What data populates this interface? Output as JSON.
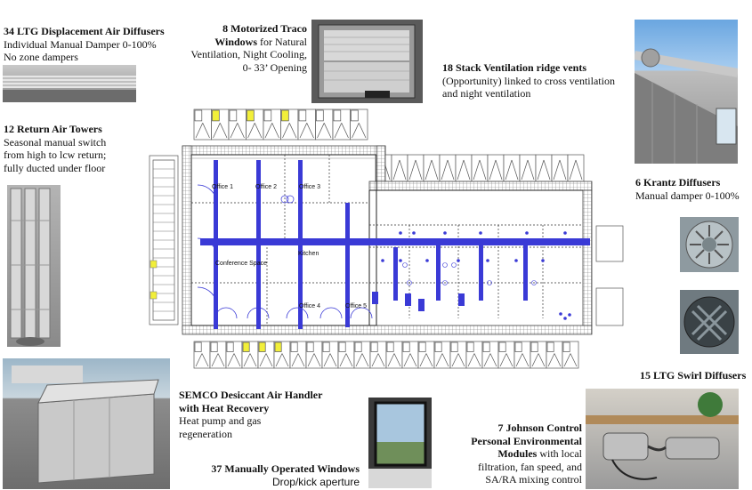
{
  "captions": {
    "ltg_displacement": {
      "title": "34 LTG Displacement Air Diffusers",
      "line1": "Individual Manual Damper 0-100%",
      "line2": "No zone dampers"
    },
    "traco": {
      "title1": "8 Motorized Traco",
      "title2": "Windows",
      "body1": " for Natural",
      "body2": "Ventilation, Night Cooling,",
      "body3": "0- 33’ Opening"
    },
    "stack": {
      "title": "18 Stack Ventilation ridge vents",
      "line1": "(Opportunity) linked to cross ventilation",
      "line2": "and night ventilation"
    },
    "return_towers": {
      "title": "12 Return Air Towers",
      "line1": "Seasonal manual switch",
      "line2": "from high to lcw return;",
      "line3": "fully ducted under floor"
    },
    "krantz": {
      "title": "6 Krantz Diffusers",
      "line1": "Manual damper 0-100%"
    },
    "swirl": {
      "title": "15 LTG Swirl Diffusers"
    },
    "semco": {
      "title1": "SEMCO Desiccant Air Handler",
      "title2": "with Heat Recovery",
      "line1": "Heat pump and gas",
      "line2": "regeneration"
    },
    "windows37": {
      "title": "37 Manually Operated Windows",
      "line1": "Drop/kick aperture"
    },
    "johnson": {
      "title1": "7 Johnson Control",
      "title2": "Personal Environmental",
      "title3": "Modules",
      "body1": " with local",
      "line2": "filtration, fan speed, and",
      "line3": "SA/RA mixing control"
    }
  },
  "plan_labels": {
    "office1": "Office 1",
    "office2": "Office 2",
    "office3": "Office 3",
    "office4": "Office 4",
    "office5": "Office 5",
    "conference": "Conference Space",
    "kitchen": "Kitchen"
  },
  "colors": {
    "duct": "#3a3ad6",
    "wall": "#444444",
    "vent_yellow": "#f2ef3a"
  }
}
